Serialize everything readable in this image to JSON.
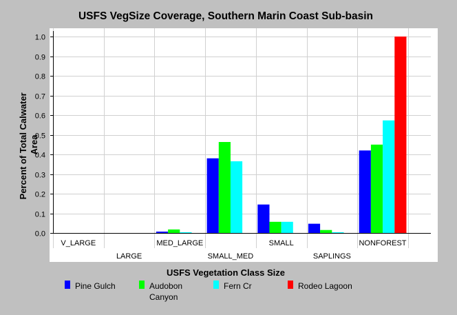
{
  "chart_data": {
    "type": "bar",
    "title": "USFS VegSize Coverage, Southern Marin Coast Sub-basin",
    "xlabel": "USFS Vegetation Class Size",
    "ylabel_lines": [
      "Percent of Total Calwater",
      "Area"
    ],
    "categories": [
      "V_LARGE",
      "LARGE",
      "MED_LARGE",
      "SMALL_MED",
      "SMALL",
      "SAPLINGS",
      "NONFOREST"
    ],
    "ylim": [
      0,
      1.0
    ],
    "yticks": [
      "0.0",
      "0.1",
      "0.2",
      "0.3",
      "0.4",
      "0.5",
      "0.6",
      "0.7",
      "0.8",
      "0.9",
      "1.0"
    ],
    "grid": true,
    "legend_position": "bottom",
    "series": [
      {
        "name": "Pine Gulch",
        "name_lines": [
          "Pine Gulch"
        ],
        "color": "#0000ff",
        "values": [
          0,
          0,
          0.007,
          0.38,
          0.145,
          0.047,
          0.42
        ]
      },
      {
        "name": "Audobon Canyon",
        "name_lines": [
          "Audobon",
          "Canyon"
        ],
        "color": "#00ff00",
        "values": [
          0,
          0,
          0.018,
          0.463,
          0.057,
          0.015,
          0.45
        ]
      },
      {
        "name": "Fern Cr",
        "name_lines": [
          "Fern Cr"
        ],
        "color": "#00ffff",
        "values": [
          0,
          0,
          0.004,
          0.365,
          0.057,
          0.004,
          0.573
        ]
      },
      {
        "name": "Rodeo Lagoon",
        "name_lines": [
          "Rodeo Lagoon"
        ],
        "color": "#ff0000",
        "values": [
          0,
          0,
          0,
          0,
          0,
          0,
          1.0
        ]
      }
    ]
  }
}
